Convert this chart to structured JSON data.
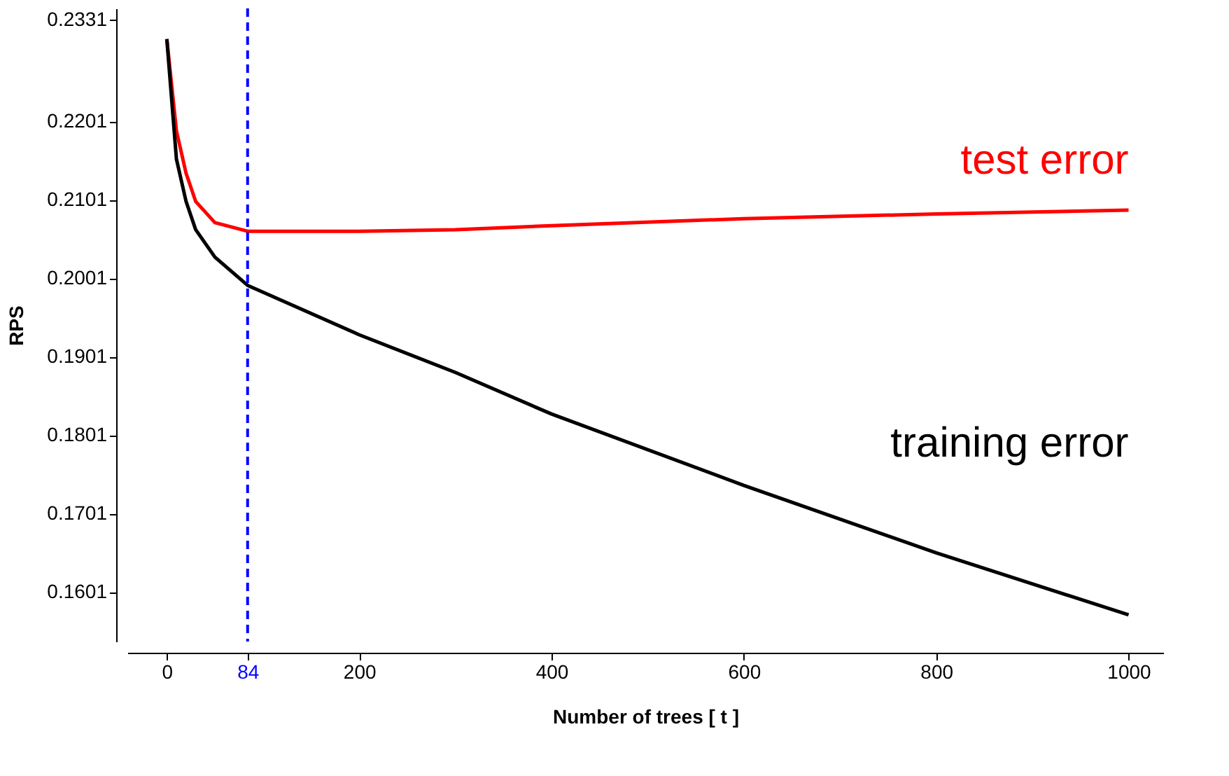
{
  "chart_data": {
    "type": "line",
    "xlabel": "Number of trees [ t ]",
    "ylabel": "RPS",
    "x": [
      0,
      10,
      20,
      30,
      50,
      84,
      200,
      300,
      400,
      600,
      800,
      1000
    ],
    "series": [
      {
        "name": "test error",
        "color": "#ff0000",
        "values": [
          0.2306,
          0.2189,
          0.2135,
          0.2099,
          0.2072,
          0.2061,
          0.2061,
          0.2063,
          0.2068,
          0.2077,
          0.2083,
          0.2088
        ]
      },
      {
        "name": "training error",
        "color": "#000000",
        "values": [
          0.2306,
          0.2153,
          0.2099,
          0.2063,
          0.2028,
          0.1992,
          0.1929,
          0.1881,
          0.1828,
          0.1737,
          0.1651,
          0.1572
        ]
      }
    ],
    "xlim": [
      -41,
      1036
    ],
    "ylim": [
      0.1538,
      0.2345
    ],
    "xticks": [
      0,
      84,
      200,
      400,
      600,
      800,
      1000
    ],
    "yticks": [
      0.1601,
      0.1701,
      0.1801,
      0.1901,
      0.2001,
      0.2101,
      0.2201,
      0.2331
    ],
    "ref_lines": [
      {
        "axis": "x",
        "value": 84,
        "color": "#0000ff",
        "line_style": "dashed"
      }
    ],
    "grid": false,
    "legend": false,
    "marker": "none",
    "line_style": "solid"
  }
}
